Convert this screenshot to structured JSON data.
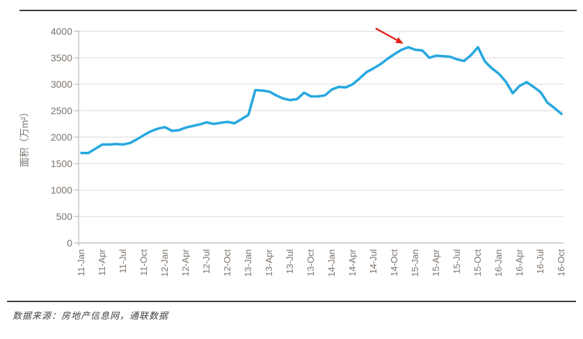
{
  "figure": {
    "source_note": "数据来源：房地产信息网，通联数据"
  },
  "chart_data": {
    "type": "line",
    "title": "",
    "xlabel": "",
    "ylabel": "面积（万m²）",
    "ylim": [
      0,
      4000
    ],
    "y_ticks": [
      0,
      500,
      1000,
      1500,
      2000,
      2500,
      3000,
      3500,
      4000
    ],
    "grid": true,
    "legend_position": "none",
    "x_start": "11-Jan",
    "x_interval": "monthly",
    "x_tick_labels": [
      "11-Jan",
      "11-Apr",
      "11-Jul",
      "11-Oct",
      "12-Jan",
      "12-Apr",
      "12-Jul",
      "12-Oct",
      "13-Jan",
      "13-Apr",
      "13-Jul",
      "13-Oct",
      "14-Jan",
      "14-Apr",
      "14-Jul",
      "14-Oct",
      "15-Jan",
      "15-Apr",
      "15-Jul",
      "15-Oct",
      "16-Jan",
      "16-Apr",
      "16-Jul",
      "16-Oct"
    ],
    "series": [
      {
        "name": "面积",
        "color": "#28a8e0",
        "values": [
          1700,
          1700,
          1780,
          1860,
          1860,
          1870,
          1860,
          1890,
          1960,
          2040,
          2110,
          2160,
          2190,
          2120,
          2130,
          2180,
          2210,
          2240,
          2280,
          2250,
          2270,
          2290,
          2260,
          2340,
          2420,
          2890,
          2880,
          2860,
          2790,
          2730,
          2700,
          2720,
          2840,
          2770,
          2770,
          2790,
          2900,
          2950,
          2940,
          3000,
          3110,
          3230,
          3300,
          3380,
          3480,
          3570,
          3650,
          3700,
          3650,
          3640,
          3500,
          3540,
          3530,
          3520,
          3470,
          3440,
          3550,
          3700,
          3430,
          3300,
          3200,
          3050,
          2830,
          2970,
          3040,
          2950,
          2850,
          2650,
          2550,
          2440
        ]
      }
    ],
    "annotation": {
      "shape": "arrow",
      "color": "#df2119",
      "points_to_index": 47,
      "points_to_label": "14-Dec",
      "points_to_value": 3700
    },
    "colors": {
      "gridline": "#d9d9d9",
      "axis": "#b7b7b7",
      "tick_label": "#7c736c"
    }
  }
}
